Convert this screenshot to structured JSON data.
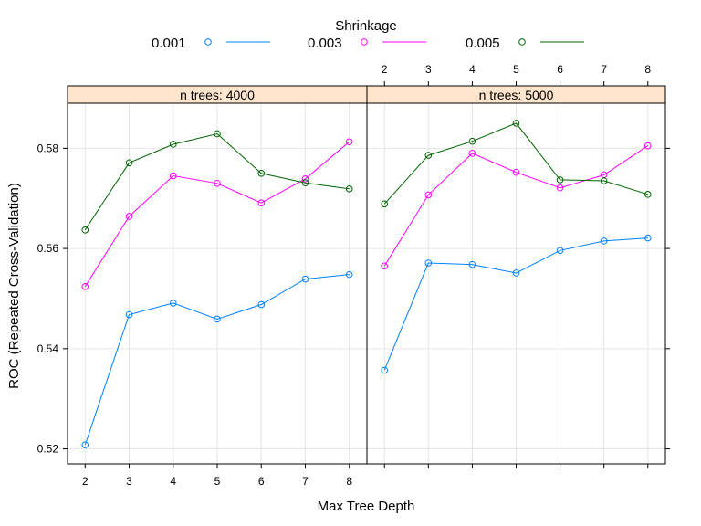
{
  "chart_data": {
    "type": "line",
    "xlabel": "Max Tree Depth",
    "ylabel": "ROC (Repeated Cross-Validation)",
    "legend": {
      "title": "Shrinkage",
      "placement": "top",
      "entries": [
        {
          "label": "0.001",
          "color": "#0080ff"
        },
        {
          "label": "0.003",
          "color": "#ff00ff"
        },
        {
          "label": "0.005",
          "color": "#006400"
        }
      ]
    },
    "x": [
      2,
      3,
      4,
      5,
      6,
      7,
      8
    ],
    "x_ticks": [
      "2",
      "3",
      "4",
      "5",
      "6",
      "7",
      "8"
    ],
    "y_ticks": [
      "0.52",
      "0.54",
      "0.56",
      "0.58"
    ],
    "xlim": [
      1.6,
      8.4
    ],
    "ylim": [
      0.517,
      0.589
    ],
    "grid": true,
    "panels": [
      {
        "strip": "n trees: 4000",
        "series": [
          {
            "name": "0.001",
            "color": "#0080ff",
            "values": [
              0.5208,
              0.5468,
              0.5491,
              0.5459,
              0.5488,
              0.5539,
              0.5548
            ]
          },
          {
            "name": "0.003",
            "color": "#ff00ff",
            "values": [
              0.5524,
              0.5664,
              0.5745,
              0.573,
              0.5691,
              0.5739,
              0.5813
            ]
          },
          {
            "name": "0.005",
            "color": "#006400",
            "values": [
              0.5637,
              0.5771,
              0.5808,
              0.5829,
              0.575,
              0.5731,
              0.5719
            ]
          }
        ]
      },
      {
        "strip": "n trees: 5000",
        "series": [
          {
            "name": "0.001",
            "color": "#0080ff",
            "values": [
              0.5357,
              0.5571,
              0.5568,
              0.5551,
              0.5596,
              0.5615,
              0.5621
            ]
          },
          {
            "name": "0.003",
            "color": "#ff00ff",
            "values": [
              0.5565,
              0.5707,
              0.579,
              0.5752,
              0.5721,
              0.5747,
              0.5805
            ]
          },
          {
            "name": "0.005",
            "color": "#006400",
            "values": [
              0.5689,
              0.5786,
              0.5814,
              0.585,
              0.5737,
              0.5735,
              0.5708
            ]
          }
        ]
      }
    ]
  }
}
